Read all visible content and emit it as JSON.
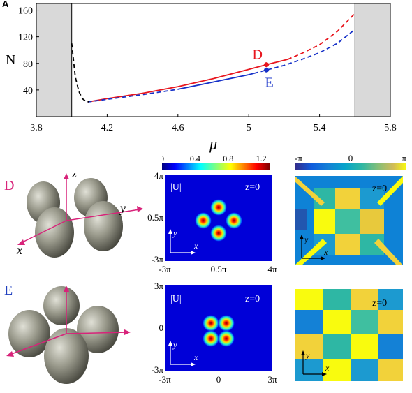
{
  "panel_label": "A",
  "top_chart": {
    "chart_data": {
      "type": "line",
      "xlabel": "μ",
      "ylabel": "N",
      "xlim": [
        3.8,
        5.8
      ],
      "ylim": [
        0,
        170
      ],
      "xticks": [
        "3.8",
        "4.2",
        "4.6",
        "5",
        "5.4",
        "5.8"
      ],
      "yticks": [
        "40",
        "80",
        "120",
        "160"
      ],
      "shaded_regions": [
        [
          3.8,
          4.0
        ],
        [
          5.6,
          5.8
        ]
      ],
      "series": [
        {
          "color": "#e8161e",
          "segments": [
            {
              "style": "solid",
              "x": [
                4.09,
                4.2,
                4.4,
                4.6,
                4.8,
                5.0,
                5.1,
                5.22
              ],
              "y": [
                22,
                27,
                35,
                45,
                57,
                71,
                78,
                86
              ]
            },
            {
              "style": "dashed",
              "x": [
                5.22,
                5.3,
                5.4,
                5.5,
                5.6
              ],
              "y": [
                86,
                95,
                108,
                128,
                155
              ]
            }
          ]
        },
        {
          "color": "#1530c8",
          "segments": [
            {
              "style": "dashed",
              "x": [
                4.09,
                4.2,
                4.4,
                4.6
              ],
              "y": [
                22,
                26,
                33,
                41
              ]
            },
            {
              "style": "solid",
              "x": [
                4.6,
                4.8,
                5.0,
                5.03
              ],
              "y": [
                41,
                52,
                63,
                65
              ]
            },
            {
              "style": "dashed",
              "x": [
                5.03,
                5.1,
                5.2,
                5.3,
                5.4,
                5.5,
                5.6
              ],
              "y": [
                65,
                70,
                77,
                86,
                96,
                110,
                131
              ]
            }
          ]
        },
        {
          "color": "#000000",
          "segments": [
            {
              "style": "dashed",
              "x": [
                4.0,
                4.01,
                4.02,
                4.04,
                4.06,
                4.08,
                4.1
              ],
              "y": [
                110,
                85,
                60,
                38,
                27,
                23,
                22
              ]
            }
          ]
        }
      ],
      "points": [
        {
          "label": "D",
          "x": 5.1,
          "y": 78,
          "color": "#e8161e"
        },
        {
          "label": "E",
          "x": 5.1,
          "y": 70,
          "color": "#1530c8"
        }
      ]
    }
  },
  "rows": [
    {
      "letter": "D",
      "letter_color": "#d8237a",
      "axes": {
        "x": "x",
        "y": "y",
        "z": "z"
      },
      "amp": {
        "label": "|U|",
        "z_label": "z=0",
        "xticks": [
          "-3π",
          "0.5π",
          "4π"
        ],
        "yticks": [
          "4π",
          "0.5π",
          "-3π"
        ],
        "ax_x": "x",
        "ax_y": "y"
      },
      "phase": {
        "z_label": "z=0",
        "ax_x": "x",
        "ax_y": "y"
      }
    },
    {
      "letter": "E",
      "letter_color": "#1f3fbf",
      "axes": {
        "x": "",
        "y": "",
        "z": ""
      },
      "amp": {
        "label": "|U|",
        "z_label": "z=0",
        "xticks": [
          "-3π",
          "0",
          "3π"
        ],
        "yticks": [
          "3π",
          "0",
          "-3π"
        ],
        "ax_x": "x",
        "ax_y": "y"
      },
      "phase": {
        "z_label": "z=0",
        "ax_x": "x",
        "ax_y": "y"
      }
    }
  ],
  "colorbar_amp": {
    "ticks": [
      "0",
      "0.4",
      "0.8",
      "1.2"
    ],
    "max": 1.3
  },
  "colorbar_phase": {
    "ticks": [
      "-π",
      "0",
      "π"
    ]
  }
}
